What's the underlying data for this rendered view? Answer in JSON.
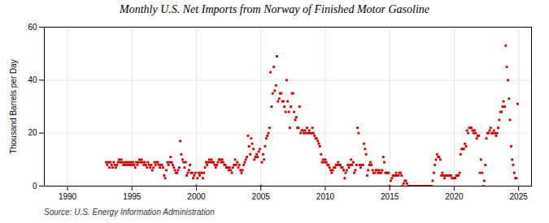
{
  "chart_data": {
    "type": "scatter",
    "title": "Monthly U.S. Net Imports from Norway of Finished Motor Gasoline",
    "ylabel": "Thousand Barrels per Day",
    "source": "Source: U.S. Energy Information Administration",
    "color": "#cc0000",
    "marker": "square",
    "grid": true,
    "xlim": [
      1988.2,
      2026.0
    ],
    "ylim": [
      0,
      60
    ],
    "xticks": [
      1990,
      1995,
      2000,
      2005,
      2010,
      2015,
      2020,
      2025
    ],
    "yticks": [
      0,
      20,
      40,
      60
    ],
    "x": [
      1993.0,
      1993.08,
      1993.17,
      1993.25,
      1993.33,
      1993.42,
      1993.5,
      1993.58,
      1993.67,
      1993.75,
      1993.83,
      1993.92,
      1994.0,
      1994.08,
      1994.17,
      1994.25,
      1994.33,
      1994.42,
      1994.5,
      1994.58,
      1994.67,
      1994.75,
      1994.83,
      1994.92,
      1995.0,
      1995.08,
      1995.17,
      1995.25,
      1995.33,
      1995.42,
      1995.5,
      1995.58,
      1995.67,
      1995.75,
      1995.83,
      1995.92,
      1996.0,
      1996.08,
      1996.17,
      1996.25,
      1996.33,
      1996.42,
      1996.5,
      1996.58,
      1996.67,
      1996.75,
      1996.83,
      1996.92,
      1997.0,
      1997.08,
      1997.17,
      1997.25,
      1997.33,
      1997.42,
      1997.5,
      1997.58,
      1997.67,
      1997.75,
      1997.83,
      1997.92,
      1998.0,
      1998.08,
      1998.17,
      1998.25,
      1998.33,
      1998.42,
      1998.5,
      1998.58,
      1998.67,
      1998.75,
      1998.83,
      1998.92,
      1999.0,
      1999.08,
      1999.17,
      1999.25,
      1999.33,
      1999.42,
      1999.5,
      1999.58,
      1999.67,
      1999.75,
      1999.83,
      1999.92,
      2000.0,
      2000.08,
      2000.17,
      2000.25,
      2000.33,
      2000.42,
      2000.5,
      2000.58,
      2000.67,
      2000.75,
      2000.83,
      2000.92,
      2001.0,
      2001.08,
      2001.17,
      2001.25,
      2001.33,
      2001.42,
      2001.5,
      2001.58,
      2001.67,
      2001.75,
      2001.83,
      2001.92,
      2002.0,
      2002.08,
      2002.17,
      2002.25,
      2002.33,
      2002.42,
      2002.5,
      2002.58,
      2002.67,
      2002.75,
      2002.83,
      2002.92,
      2003.0,
      2003.08,
      2003.17,
      2003.25,
      2003.33,
      2003.42,
      2003.5,
      2003.58,
      2003.67,
      2003.75,
      2003.83,
      2003.92,
      2004.0,
      2004.08,
      2004.17,
      2004.25,
      2004.33,
      2004.42,
      2004.5,
      2004.58,
      2004.67,
      2004.75,
      2004.83,
      2004.92,
      2005.0,
      2005.08,
      2005.17,
      2005.25,
      2005.33,
      2005.42,
      2005.5,
      2005.58,
      2005.67,
      2005.75,
      2005.83,
      2005.92,
      2006.0,
      2006.08,
      2006.17,
      2006.25,
      2006.33,
      2006.42,
      2006.5,
      2006.58,
      2006.67,
      2006.75,
      2006.83,
      2006.92,
      2007.0,
      2007.08,
      2007.17,
      2007.25,
      2007.33,
      2007.42,
      2007.5,
      2007.58,
      2007.67,
      2007.75,
      2007.83,
      2007.92,
      2008.0,
      2008.08,
      2008.17,
      2008.25,
      2008.33,
      2008.42,
      2008.5,
      2008.58,
      2008.67,
      2008.75,
      2008.83,
      2008.92,
      2009.0,
      2009.08,
      2009.17,
      2009.25,
      2009.33,
      2009.42,
      2009.5,
      2009.58,
      2009.67,
      2009.75,
      2009.83,
      2009.92,
      2010.0,
      2010.08,
      2010.17,
      2010.25,
      2010.33,
      2010.42,
      2010.5,
      2010.58,
      2010.67,
      2010.75,
      2010.83,
      2010.92,
      2011.0,
      2011.08,
      2011.17,
      2011.25,
      2011.33,
      2011.42,
      2011.5,
      2011.58,
      2011.67,
      2011.75,
      2011.83,
      2011.92,
      2012.0,
      2012.08,
      2012.17,
      2012.25,
      2012.33,
      2012.42,
      2012.5,
      2012.58,
      2012.67,
      2012.75,
      2012.83,
      2012.92,
      2013.0,
      2013.08,
      2013.17,
      2013.25,
      2013.33,
      2013.42,
      2013.5,
      2013.58,
      2013.67,
      2013.75,
      2013.83,
      2013.92,
      2014.0,
      2014.08,
      2014.17,
      2014.25,
      2014.33,
      2014.42,
      2014.5,
      2014.58,
      2014.67,
      2014.75,
      2014.83,
      2014.92,
      2015.0,
      2015.08,
      2015.17,
      2015.25,
      2015.33,
      2015.42,
      2015.5,
      2015.58,
      2015.67,
      2015.75,
      2015.83,
      2015.92,
      2016.0,
      2016.08,
      2016.17,
      2016.25,
      2016.33,
      2016.42,
      2016.5,
      2016.58,
      2016.67,
      2016.75,
      2016.83,
      2016.92,
      2017.0,
      2017.08,
      2017.17,
      2017.25,
      2017.33,
      2017.42,
      2017.5,
      2017.58,
      2017.67,
      2017.75,
      2017.83,
      2017.92,
      2018.0,
      2018.08,
      2018.17,
      2018.25,
      2018.33,
      2018.42,
      2018.5,
      2018.58,
      2018.67,
      2018.75,
      2018.83,
      2018.92,
      2019.0,
      2019.08,
      2019.17,
      2019.25,
      2019.33,
      2019.42,
      2019.5,
      2019.58,
      2019.67,
      2019.75,
      2019.83,
      2019.92,
      2020.0,
      2020.08,
      2020.17,
      2020.25,
      2020.33,
      2020.42,
      2020.5,
      2020.58,
      2020.67,
      2020.75,
      2020.83,
      2020.92,
      2021.0,
      2021.08,
      2021.17,
      2021.25,
      2021.33,
      2021.42,
      2021.5,
      2021.58,
      2021.67,
      2021.75,
      2021.83,
      2021.92,
      2022.0,
      2022.08,
      2022.17,
      2022.25,
      2022.33,
      2022.42,
      2022.5,
      2022.58,
      2022.67,
      2022.75,
      2022.83,
      2022.92,
      2023.0,
      2023.08,
      2023.17,
      2023.25,
      2023.33,
      2023.42,
      2023.5,
      2023.58,
      2023.67,
      2023.75,
      2023.83,
      2023.92,
      2024.0,
      2024.08,
      2024.17,
      2024.25,
      2024.33,
      2024.42,
      2024.5,
      2024.58,
      2024.67,
      2024.75,
      2024.83,
      2024.92
    ],
    "values": [
      9,
      8,
      9,
      7,
      9,
      8,
      7,
      9,
      8,
      7,
      8,
      9,
      10,
      9,
      10,
      9,
      8,
      9,
      8,
      9,
      8,
      9,
      8,
      9,
      8,
      9,
      8,
      7,
      9,
      8,
      9,
      10,
      9,
      10,
      9,
      8,
      9,
      8,
      7,
      9,
      8,
      7,
      8,
      6,
      7,
      9,
      8,
      9,
      9,
      8,
      7,
      8,
      8,
      7,
      4,
      3,
      6,
      9,
      8,
      9,
      11,
      9,
      8,
      7,
      6,
      5,
      5,
      6,
      7,
      17,
      12,
      10,
      9,
      7,
      9,
      4,
      5,
      6,
      8,
      5,
      5,
      3,
      4,
      5,
      0,
      3,
      5,
      4,
      5,
      5,
      3,
      5,
      7,
      9,
      8,
      9,
      10,
      9,
      10,
      9,
      9,
      8,
      7,
      8,
      9,
      10,
      10,
      9,
      10,
      9,
      8,
      8,
      7,
      7,
      6,
      7,
      6,
      5,
      7,
      8,
      10,
      8,
      9,
      7,
      8,
      6,
      5,
      6,
      8,
      9,
      10,
      11,
      19,
      15,
      12,
      18,
      16,
      14,
      10,
      11,
      12,
      11,
      13,
      14,
      0,
      9,
      12,
      10,
      15,
      18,
      19,
      20,
      22,
      43,
      30,
      35,
      45,
      36,
      38,
      49,
      32,
      33,
      35,
      35,
      32,
      32,
      30,
      28,
      40,
      32,
      28,
      22,
      30,
      35,
      35,
      28,
      25,
      26,
      22,
      22,
      30,
      20,
      21,
      21,
      20,
      21,
      20,
      22,
      20,
      21,
      20,
      20,
      22,
      20,
      19,
      18,
      18,
      17,
      16,
      15,
      12,
      9,
      10,
      9,
      10,
      9,
      8,
      8,
      7,
      6,
      5,
      6,
      7,
      7,
      8,
      8,
      9,
      8,
      8,
      7,
      7,
      6,
      3,
      5,
      6,
      8,
      7,
      8,
      10,
      8,
      9,
      5,
      6,
      8,
      22,
      20,
      8,
      7,
      8,
      8,
      16,
      14,
      12,
      4,
      6,
      8,
      9,
      8,
      6,
      5,
      5,
      6,
      6,
      5,
      6,
      5,
      5,
      6,
      11,
      9,
      5,
      5,
      5,
      5,
      0,
      2,
      3,
      4,
      4,
      4,
      5,
      4,
      4,
      5,
      5,
      4,
      0,
      1,
      2,
      2,
      1,
      0,
      0,
      0,
      0,
      0,
      0,
      0,
      0,
      0,
      0,
      0,
      0,
      0,
      0,
      0,
      0,
      0,
      0,
      0,
      0,
      0,
      0,
      0,
      2,
      5,
      8,
      10,
      12,
      11,
      11,
      10,
      4,
      5,
      4,
      3,
      4,
      4,
      4,
      4,
      4,
      4,
      3,
      3,
      3,
      3,
      4,
      4,
      4,
      5,
      12,
      14,
      14,
      14,
      16,
      15,
      21,
      20,
      22,
      22,
      22,
      21,
      20,
      21,
      20,
      18,
      19,
      19,
      5,
      10,
      5,
      0,
      2,
      8,
      18,
      20,
      20,
      21,
      22,
      20,
      20,
      21,
      20,
      19,
      20,
      22,
      25,
      28,
      28,
      30,
      32,
      30,
      53,
      45,
      40,
      33,
      25,
      15,
      10,
      8,
      5,
      3,
      3,
      31
    ]
  }
}
